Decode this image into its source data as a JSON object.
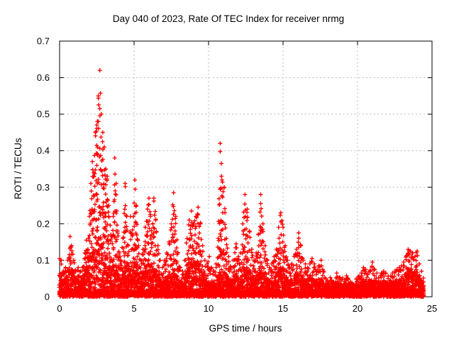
{
  "window": {
    "background": "#ffffff"
  },
  "colors": {
    "marker": "#ff0000",
    "grid": "#b9b9b9",
    "axis": "#000000",
    "text": "#000000",
    "background": "#ffffff"
  },
  "chart_data": {
    "type": "scatter",
    "title": "Day 040 of 2023, Rate Of TEC Index for receiver nrmg",
    "xlabel": "GPS time / hours",
    "ylabel": "ROTI / TECUs",
    "xlim": [
      0,
      25
    ],
    "ylim": [
      0,
      0.7
    ],
    "xticks": [
      0,
      5,
      10,
      15,
      20,
      25
    ],
    "xtick_labels": [
      "0",
      "5",
      "10",
      "15",
      "20",
      "25"
    ],
    "yticks": [
      0,
      0.1,
      0.2,
      0.3,
      0.4,
      0.5,
      0.6,
      0.7
    ],
    "ytick_labels": [
      "0",
      "0.1",
      "0.2",
      "0.3",
      "0.4",
      "0.5",
      "0.6",
      "0.7"
    ],
    "grid": true,
    "legend": "none",
    "marker": {
      "shape": "plus",
      "color": "#ff0000",
      "size": 7
    },
    "x_data_range": [
      0,
      24.45
    ],
    "series": [
      {
        "name": "ROTI",
        "representation": "column_envelope",
        "envelope_format": [
          "hour",
          "peak_max_roti",
          "dense_mass_top_roti"
        ],
        "envelope": [
          [
            0.0,
            0.105,
            0.07
          ],
          [
            0.1,
            0.1,
            0.06
          ],
          [
            0.25,
            0.07,
            0.045
          ],
          [
            0.4,
            0.08,
            0.05
          ],
          [
            0.55,
            0.1,
            0.06
          ],
          [
            0.7,
            0.165,
            0.1
          ],
          [
            0.8,
            0.14,
            0.09
          ],
          [
            0.95,
            0.1,
            0.06
          ],
          [
            1.1,
            0.07,
            0.045
          ],
          [
            1.25,
            0.08,
            0.05
          ],
          [
            1.4,
            0.07,
            0.045
          ],
          [
            1.55,
            0.08,
            0.05
          ],
          [
            1.7,
            0.12,
            0.07
          ],
          [
            1.8,
            0.155,
            0.09
          ],
          [
            1.9,
            0.13,
            0.08
          ],
          [
            2.0,
            0.22,
            0.1
          ],
          [
            2.1,
            0.31,
            0.12
          ],
          [
            2.2,
            0.37,
            0.13
          ],
          [
            2.3,
            0.34,
            0.12
          ],
          [
            2.4,
            0.45,
            0.14
          ],
          [
            2.5,
            0.47,
            0.15
          ],
          [
            2.6,
            0.55,
            0.16
          ],
          [
            2.7,
            0.62,
            0.17
          ],
          [
            2.8,
            0.5,
            0.16
          ],
          [
            2.9,
            0.45,
            0.14
          ],
          [
            3.0,
            0.41,
            0.13
          ],
          [
            3.1,
            0.35,
            0.12
          ],
          [
            3.2,
            0.33,
            0.11
          ],
          [
            3.3,
            0.25,
            0.1
          ],
          [
            3.45,
            0.17,
            0.08
          ],
          [
            3.6,
            0.22,
            0.09
          ],
          [
            3.7,
            0.38,
            0.1
          ],
          [
            3.8,
            0.31,
            0.09
          ],
          [
            3.9,
            0.18,
            0.07
          ],
          [
            4.0,
            0.12,
            0.055
          ],
          [
            4.1,
            0.1,
            0.05
          ],
          [
            4.25,
            0.16,
            0.07
          ],
          [
            4.4,
            0.31,
            0.09
          ],
          [
            4.5,
            0.22,
            0.08
          ],
          [
            4.6,
            0.14,
            0.06
          ],
          [
            4.75,
            0.22,
            0.08
          ],
          [
            4.9,
            0.17,
            0.07
          ],
          [
            5.05,
            0.32,
            0.1
          ],
          [
            5.15,
            0.25,
            0.09
          ],
          [
            5.3,
            0.14,
            0.06
          ],
          [
            5.45,
            0.1,
            0.05
          ],
          [
            5.6,
            0.13,
            0.06
          ],
          [
            5.75,
            0.19,
            0.08
          ],
          [
            5.9,
            0.24,
            0.1
          ],
          [
            6.0,
            0.27,
            0.11
          ],
          [
            6.1,
            0.22,
            0.09
          ],
          [
            6.2,
            0.17,
            0.07
          ],
          [
            6.33,
            0.27,
            0.08
          ],
          [
            6.45,
            0.21,
            0.07
          ],
          [
            6.6,
            0.14,
            0.06
          ],
          [
            6.75,
            0.1,
            0.05
          ],
          [
            6.9,
            0.08,
            0.045
          ],
          [
            7.05,
            0.1,
            0.05
          ],
          [
            7.2,
            0.12,
            0.055
          ],
          [
            7.35,
            0.15,
            0.06
          ],
          [
            7.5,
            0.2,
            0.07
          ],
          [
            7.65,
            0.285,
            0.08
          ],
          [
            7.8,
            0.22,
            0.07
          ],
          [
            7.95,
            0.12,
            0.055
          ],
          [
            8.1,
            0.08,
            0.045
          ],
          [
            8.25,
            0.07,
            0.04
          ],
          [
            8.4,
            0.1,
            0.05
          ],
          [
            8.55,
            0.16,
            0.07
          ],
          [
            8.7,
            0.21,
            0.09
          ],
          [
            8.85,
            0.235,
            0.1
          ],
          [
            9.0,
            0.2,
            0.09
          ],
          [
            9.15,
            0.22,
            0.1
          ],
          [
            9.3,
            0.245,
            0.1
          ],
          [
            9.45,
            0.2,
            0.09
          ],
          [
            9.6,
            0.14,
            0.07
          ],
          [
            9.75,
            0.1,
            0.05
          ],
          [
            9.9,
            0.09,
            0.045
          ],
          [
            10.05,
            0.11,
            0.05
          ],
          [
            10.2,
            0.08,
            0.04
          ],
          [
            10.35,
            0.07,
            0.04
          ],
          [
            10.5,
            0.09,
            0.045
          ],
          [
            10.65,
            0.16,
            0.06
          ],
          [
            10.78,
            0.42,
            0.08
          ],
          [
            10.9,
            0.32,
            0.07
          ],
          [
            11.05,
            0.3,
            0.07
          ],
          [
            11.2,
            0.16,
            0.06
          ],
          [
            11.35,
            0.11,
            0.05
          ],
          [
            11.5,
            0.08,
            0.045
          ],
          [
            11.65,
            0.1,
            0.05
          ],
          [
            11.85,
            0.145,
            0.07
          ],
          [
            12.0,
            0.11,
            0.05
          ],
          [
            12.15,
            0.12,
            0.055
          ],
          [
            12.3,
            0.2,
            0.07
          ],
          [
            12.45,
            0.28,
            0.09
          ],
          [
            12.6,
            0.24,
            0.08
          ],
          [
            12.75,
            0.18,
            0.07
          ],
          [
            12.9,
            0.13,
            0.055
          ],
          [
            13.05,
            0.1,
            0.05
          ],
          [
            13.2,
            0.12,
            0.055
          ],
          [
            13.35,
            0.17,
            0.07
          ],
          [
            13.5,
            0.28,
            0.09
          ],
          [
            13.65,
            0.2,
            0.08
          ],
          [
            13.8,
            0.14,
            0.06
          ],
          [
            13.95,
            0.1,
            0.05
          ],
          [
            14.1,
            0.08,
            0.045
          ],
          [
            14.25,
            0.09,
            0.05
          ],
          [
            14.4,
            0.11,
            0.055
          ],
          [
            14.55,
            0.13,
            0.06
          ],
          [
            14.7,
            0.19,
            0.08
          ],
          [
            14.85,
            0.23,
            0.09
          ],
          [
            15.0,
            0.19,
            0.08
          ],
          [
            15.15,
            0.14,
            0.06
          ],
          [
            15.3,
            0.1,
            0.05
          ],
          [
            15.45,
            0.08,
            0.045
          ],
          [
            15.6,
            0.09,
            0.05
          ],
          [
            15.75,
            0.11,
            0.055
          ],
          [
            15.9,
            0.13,
            0.06
          ],
          [
            16.05,
            0.175,
            0.07
          ],
          [
            16.2,
            0.14,
            0.06
          ],
          [
            16.35,
            0.1,
            0.05
          ],
          [
            16.5,
            0.09,
            0.05
          ],
          [
            16.65,
            0.08,
            0.045
          ],
          [
            16.8,
            0.09,
            0.05
          ],
          [
            16.95,
            0.105,
            0.055
          ],
          [
            17.1,
            0.09,
            0.05
          ],
          [
            17.25,
            0.07,
            0.045
          ],
          [
            17.4,
            0.085,
            0.05
          ],
          [
            17.55,
            0.1,
            0.05
          ],
          [
            17.7,
            0.07,
            0.04
          ],
          [
            17.85,
            0.055,
            0.035
          ],
          [
            18.0,
            0.05,
            0.035
          ],
          [
            18.15,
            0.055,
            0.035
          ],
          [
            18.3,
            0.06,
            0.04
          ],
          [
            18.45,
            0.05,
            0.035
          ],
          [
            18.6,
            0.065,
            0.04
          ],
          [
            18.75,
            0.055,
            0.035
          ],
          [
            18.9,
            0.05,
            0.035
          ],
          [
            19.05,
            0.055,
            0.035
          ],
          [
            19.2,
            0.06,
            0.04
          ],
          [
            19.35,
            0.055,
            0.035
          ],
          [
            19.5,
            0.05,
            0.03
          ],
          [
            19.65,
            0.045,
            0.03
          ],
          [
            19.8,
            0.05,
            0.035
          ],
          [
            19.95,
            0.055,
            0.035
          ],
          [
            20.1,
            0.06,
            0.04
          ],
          [
            20.25,
            0.065,
            0.04
          ],
          [
            20.4,
            0.08,
            0.045
          ],
          [
            20.55,
            0.075,
            0.045
          ],
          [
            20.7,
            0.065,
            0.04
          ],
          [
            20.85,
            0.07,
            0.04
          ],
          [
            21.0,
            0.095,
            0.05
          ],
          [
            21.15,
            0.075,
            0.045
          ],
          [
            21.3,
            0.065,
            0.04
          ],
          [
            21.45,
            0.06,
            0.04
          ],
          [
            21.6,
            0.065,
            0.04
          ],
          [
            21.75,
            0.07,
            0.045
          ],
          [
            21.9,
            0.065,
            0.04
          ],
          [
            22.05,
            0.06,
            0.04
          ],
          [
            22.2,
            0.06,
            0.04
          ],
          [
            22.35,
            0.065,
            0.04
          ],
          [
            22.5,
            0.07,
            0.045
          ],
          [
            22.65,
            0.075,
            0.045
          ],
          [
            22.8,
            0.08,
            0.05
          ],
          [
            22.95,
            0.085,
            0.05
          ],
          [
            23.1,
            0.095,
            0.055
          ],
          [
            23.25,
            0.11,
            0.06
          ],
          [
            23.4,
            0.13,
            0.07
          ],
          [
            23.55,
            0.125,
            0.08
          ],
          [
            23.7,
            0.12,
            0.07
          ],
          [
            23.85,
            0.11,
            0.065
          ],
          [
            24.0,
            0.125,
            0.06
          ],
          [
            24.15,
            0.09,
            0.05
          ],
          [
            24.3,
            0.07,
            0.045
          ],
          [
            24.45,
            0.05,
            0.03
          ]
        ]
      }
    ]
  }
}
